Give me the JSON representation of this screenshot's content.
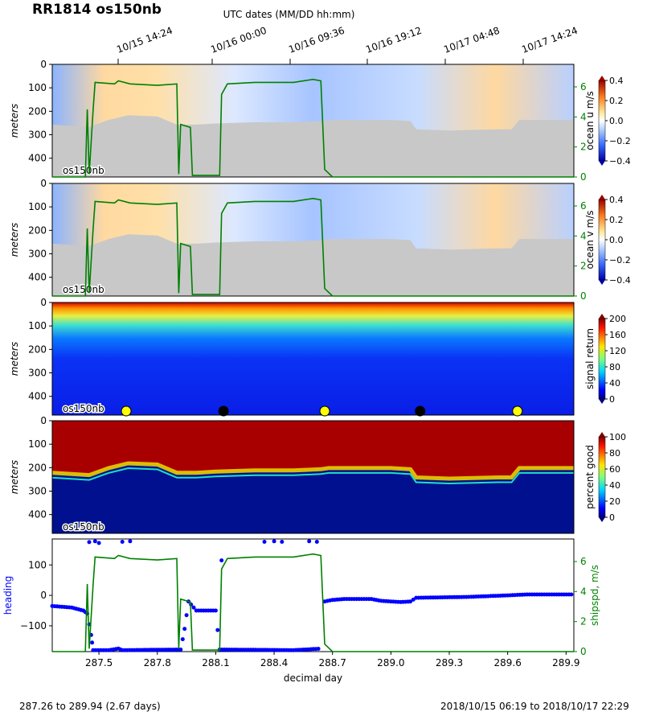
{
  "title": "RR1814 os150nb",
  "footer": {
    "left": "287.26 to 289.94 (2.67 days)",
    "right": "2018/10/15 06:19 to 2018/10/17 22:29"
  },
  "chart_data": [
    {
      "type": "heatmap",
      "panel": "ocean_u",
      "ylabel": "meters",
      "colorbar_label": "ocean u m/s",
      "colorbar_ticks": [
        "0.4",
        "0.2",
        "0.0",
        "−0.2",
        "−0.4"
      ],
      "right_axis_ticks": [
        "6",
        "4",
        "2",
        "0"
      ],
      "yticks": [
        "0",
        "100",
        "200",
        "300",
        "400"
      ],
      "ylim": [
        0,
        480
      ],
      "clim": [
        -0.4,
        0.4
      ],
      "top_axis_label": "UTC dates (MM/DD hh:mm)",
      "top_axis_ticks": [
        "10/15 14:24",
        "10/16 00:00",
        "10/16 09:36",
        "10/16 19:12",
        "10/17 04:48",
        "10/17 14:24"
      ],
      "instrument_label": "os150nb"
    },
    {
      "type": "heatmap",
      "panel": "ocean_v",
      "ylabel": "meters",
      "colorbar_label": "ocean v m/s",
      "colorbar_ticks": [
        "0.4",
        "0.2",
        "0.0",
        "−0.2",
        "−0.4"
      ],
      "right_axis_ticks": [
        "6",
        "4",
        "2",
        "0"
      ],
      "yticks": [
        "0",
        "100",
        "200",
        "300",
        "400"
      ],
      "ylim": [
        0,
        480
      ],
      "clim": [
        -0.4,
        0.4
      ],
      "instrument_label": "os150nb"
    },
    {
      "type": "heatmap",
      "panel": "signal_return",
      "ylabel": "meters",
      "colorbar_label": "signal return",
      "colorbar_ticks": [
        "200",
        "160",
        "120",
        "80",
        "40",
        "0"
      ],
      "yticks": [
        "0",
        "100",
        "200",
        "300",
        "400"
      ],
      "ylim": [
        0,
        480
      ],
      "clim": [
        0,
        200
      ],
      "instrument_label": "os150nb",
      "day_markers": [
        {
          "x": 287.64,
          "color": "#ffff00"
        },
        {
          "x": 288.14,
          "color": "#000000"
        },
        {
          "x": 288.66,
          "color": "#ffff00"
        },
        {
          "x": 289.15,
          "color": "#000000"
        },
        {
          "x": 289.65,
          "color": "#ffff00"
        }
      ]
    },
    {
      "type": "heatmap",
      "panel": "percent_good",
      "ylabel": "meters",
      "colorbar_label": "percent good",
      "colorbar_ticks": [
        "100",
        "80",
        "60",
        "40",
        "20",
        "0"
      ],
      "yticks": [
        "0",
        "100",
        "200",
        "300",
        "400"
      ],
      "ylim": [
        0,
        480
      ],
      "clim": [
        0,
        100
      ],
      "instrument_label": "os150nb"
    },
    {
      "type": "line",
      "panel": "heading_shipspd",
      "xlabel": "decimal day",
      "xticks": [
        "287.5",
        "287.8",
        "288.1",
        "288.4",
        "288.7",
        "289.0",
        "289.3",
        "289.6",
        "289.9"
      ],
      "xlim": [
        287.26,
        289.94
      ],
      "ylabel_left": "heading",
      "ylabel_right": "shipspd, m/s",
      "left_yticks": [
        "100",
        "0",
        "−100"
      ],
      "right_yticks": [
        "6",
        "4",
        "2",
        "0"
      ],
      "series": [
        {
          "color": "#0000ff",
          "axis": "left",
          "segments": [
            [
              [
                287.26,
                -35
              ],
              [
                287.36,
                -40
              ],
              [
                287.42,
                -50
              ],
              [
                287.44,
                -60
              ],
              [
                287.46,
                -130
              ],
              [
                287.47,
                -180
              ],
              [
                287.55,
                -180
              ],
              [
                287.6,
                -175
              ],
              [
                287.62,
                -180
              ],
              [
                287.92,
                -178
              ],
              [
                287.94,
                -110
              ],
              [
                287.96,
                -20
              ],
              [
                288.0,
                -50
              ],
              [
                288.1,
                -50
              ],
              [
                288.12,
                -178
              ],
              [
                288.5,
                -180
              ],
              [
                288.64,
                -175
              ]
            ],
            [
              [
                288.66,
                -20
              ],
              [
                288.7,
                -15
              ],
              [
                288.76,
                -12
              ],
              [
                288.9,
                -12
              ],
              [
                288.95,
                -18
              ],
              [
                289.05,
                -22
              ],
              [
                289.1,
                -20
              ],
              [
                289.13,
                -8
              ],
              [
                289.4,
                -5
              ],
              [
                289.6,
                0
              ],
              [
                289.7,
                3
              ],
              [
                289.94,
                3
              ]
            ]
          ],
          "values_note": ""
        },
        {
          "color": "#008000",
          "axis": "right",
          "values": [
            [
              287.26,
              0
            ],
            [
              287.43,
              0
            ],
            [
              287.44,
              4.5
            ],
            [
              287.45,
              0.2
            ],
            [
              287.47,
              4.5
            ],
            [
              287.48,
              6.3
            ],
            [
              287.58,
              6.2
            ],
            [
              287.6,
              6.4
            ],
            [
              287.66,
              6.2
            ],
            [
              287.8,
              6.1
            ],
            [
              287.9,
              6.2
            ],
            [
              287.91,
              0.2
            ],
            [
              287.92,
              3.5
            ],
            [
              287.97,
              3.3
            ],
            [
              287.98,
              0.1
            ],
            [
              288.12,
              0.1
            ],
            [
              288.13,
              5.5
            ],
            [
              288.16,
              6.2
            ],
            [
              288.3,
              6.3
            ],
            [
              288.5,
              6.3
            ],
            [
              288.6,
              6.5
            ],
            [
              288.64,
              6.4
            ],
            [
              288.66,
              0.5
            ],
            [
              288.7,
              0
            ],
            [
              289.94,
              0
            ]
          ]
        }
      ]
    }
  ]
}
